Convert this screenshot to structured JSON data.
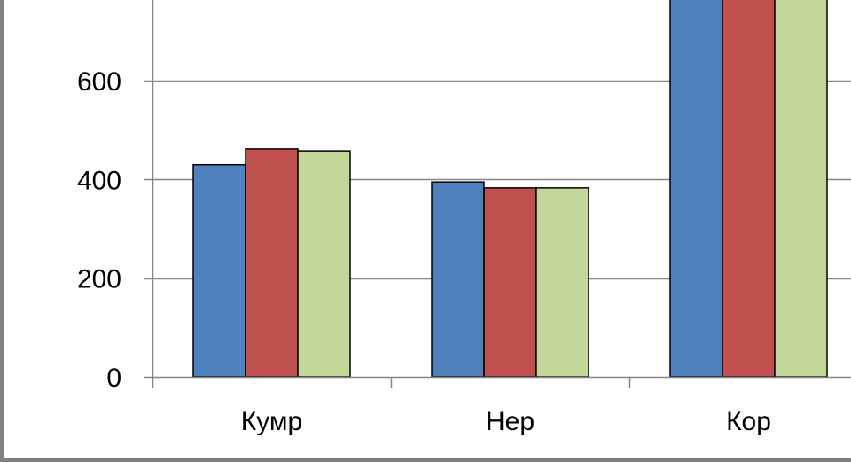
{
  "chart_data": {
    "type": "bar",
    "categories": [
      "Кумр",
      "Нер",
      "Кор"
    ],
    "series": [
      {
        "values": [
          430,
          395,
          800
        ],
        "color": "#4F81BD"
      },
      {
        "values": [
          462,
          383,
          800
        ],
        "color": "#C0504D"
      },
      {
        "values": [
          458,
          383,
          800
        ],
        "color": "#C4D79B"
      }
    ],
    "y_ticks": [
      "0",
      "200",
      "400",
      "600"
    ],
    "ylim": [
      0,
      760
    ],
    "grid": true,
    "legend": "none"
  }
}
